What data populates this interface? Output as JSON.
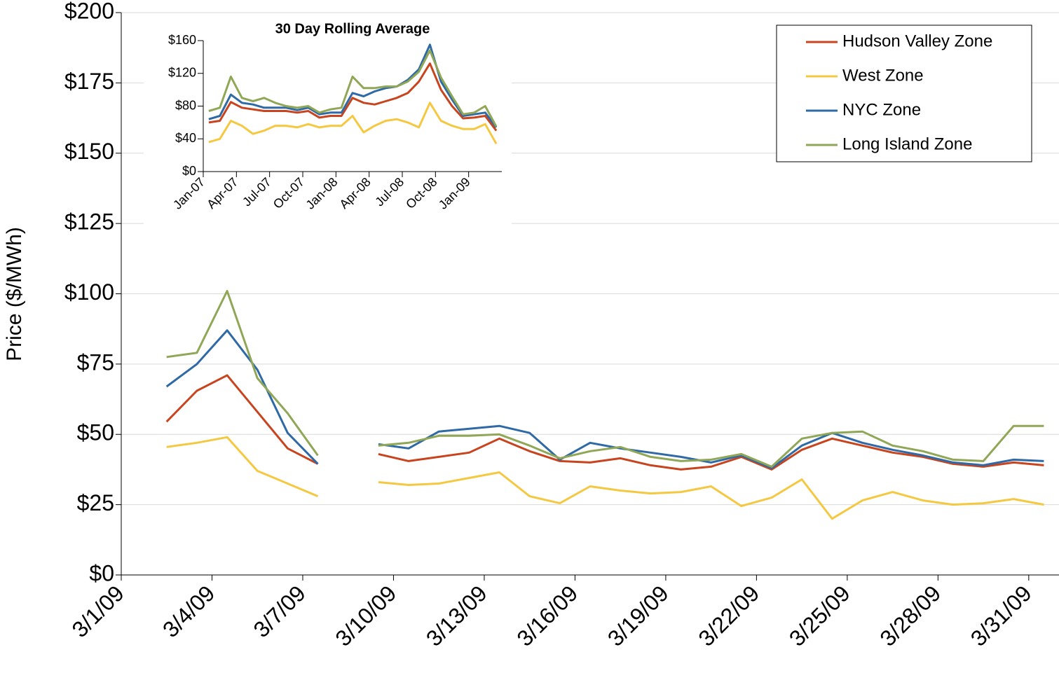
{
  "chart_data": [
    {
      "type": "line",
      "y_label": "Price ($/MWh)",
      "categories": [
        "3/1/09",
        null,
        null,
        "3/4/09",
        null,
        null,
        "3/7/09",
        null,
        null,
        "3/10/09",
        null,
        null,
        "3/13/09",
        null,
        null,
        "3/16/09",
        null,
        null,
        "3/19/09",
        null,
        null,
        "3/22/09",
        null,
        null,
        "3/25/09",
        null,
        null,
        "3/28/09",
        null,
        null,
        "3/31/09"
      ],
      "ylim": [
        0,
        200
      ],
      "yticks": [
        {
          "value": 0,
          "label": "$0"
        },
        {
          "value": 25,
          "label": "$25"
        },
        {
          "value": 50,
          "label": "$50"
        },
        {
          "value": 75,
          "label": "$75"
        },
        {
          "value": 100,
          "label": "$100"
        },
        {
          "value": 125,
          "label": "$125"
        },
        {
          "value": 150,
          "label": "$150"
        },
        {
          "value": 175,
          "label": "$175"
        },
        {
          "value": 200,
          "label": "$200"
        }
      ],
      "grid": true,
      "legend": "upper right",
      "series": [
        {
          "name": "Hudson Valley Zone",
          "color": "#c8441e",
          "values": [
            null,
            54.5,
            65.5,
            71,
            58,
            45,
            39.5,
            null,
            43,
            40.5,
            42,
            43.5,
            48.5,
            44,
            40.5,
            40,
            41.5,
            39,
            37.5,
            38.5,
            42,
            37.5,
            44.5,
            48.5,
            46,
            43.5,
            42,
            39.5,
            38.5,
            40,
            39
          ]
        },
        {
          "name": "West Zone",
          "color": "#f5c842",
          "values": [
            null,
            45.5,
            47,
            49,
            37,
            32.5,
            28,
            null,
            33,
            32,
            32.5,
            34.5,
            36.5,
            28,
            25.5,
            31.5,
            30,
            29,
            29.5,
            31.5,
            24.5,
            27.5,
            34,
            20,
            26.5,
            29.5,
            26.5,
            25,
            25.5,
            27,
            25
          ]
        },
        {
          "name": "NYC Zone",
          "color": "#2f6aa6",
          "values": [
            null,
            67,
            75,
            87,
            73,
            50.5,
            39.5,
            null,
            46.5,
            45,
            51,
            52,
            53,
            50.5,
            41,
            47,
            45,
            43.5,
            42,
            40,
            42.5,
            38,
            46,
            50.5,
            47,
            44.5,
            42.5,
            40,
            39,
            41,
            40.5
          ]
        },
        {
          "name": "Long Island Zone",
          "color": "#8fa756",
          "values": [
            null,
            77.5,
            79,
            101,
            70,
            57.5,
            42.5,
            null,
            46,
            47,
            49.5,
            49.5,
            50,
            46,
            41.5,
            44,
            45.5,
            42,
            40.5,
            41,
            43,
            38.5,
            48.5,
            50.5,
            51,
            46,
            44,
            41,
            40.5,
            53,
            53
          ]
        }
      ]
    },
    {
      "type": "line",
      "title": "30 Day Rolling Average",
      "categories": [
        "Jan-07",
        null,
        null,
        "Apr-07",
        null,
        null,
        "Jul-07",
        null,
        null,
        "Oct-07",
        null,
        null,
        "Jan-08",
        null,
        null,
        "Apr-08",
        null,
        null,
        "Jul-08",
        null,
        null,
        "Oct-08",
        null,
        null,
        "Jan-09",
        null,
        null
      ],
      "ylim": [
        0,
        160
      ],
      "yticks": [
        {
          "value": 0,
          "label": "$0"
        },
        {
          "value": 40,
          "label": "$40"
        },
        {
          "value": 80,
          "label": "$80"
        },
        {
          "value": 120,
          "label": "$120"
        },
        {
          "value": 160,
          "label": "$160"
        }
      ],
      "grid": false,
      "series": [
        {
          "color": "#c8441e",
          "values": [
            60,
            62,
            85,
            78,
            76,
            74,
            74,
            74,
            72,
            74,
            66,
            68,
            68,
            90,
            84,
            82,
            86,
            90,
            96,
            110,
            132,
            100,
            80,
            65,
            66,
            68,
            50
          ]
        },
        {
          "color": "#f5c842",
          "values": [
            36,
            40,
            62,
            56,
            46,
            50,
            56,
            56,
            54,
            58,
            54,
            56,
            56,
            68,
            48,
            56,
            62,
            64,
            60,
            54,
            84,
            62,
            56,
            52,
            52,
            58,
            34
          ]
        },
        {
          "color": "#2f6aa6",
          "values": [
            64,
            68,
            94,
            84,
            82,
            78,
            78,
            78,
            75,
            78,
            70,
            72,
            72,
            96,
            92,
            98,
            102,
            104,
            112,
            125,
            155,
            110,
            88,
            68,
            70,
            72,
            54
          ]
        },
        {
          "color": "#8fa756",
          "values": [
            74,
            78,
            116,
            90,
            86,
            90,
            84,
            80,
            78,
            80,
            72,
            76,
            78,
            116,
            102,
            102,
            104,
            104,
            110,
            122,
            148,
            115,
            92,
            70,
            72,
            80,
            55
          ]
        }
      ]
    }
  ]
}
